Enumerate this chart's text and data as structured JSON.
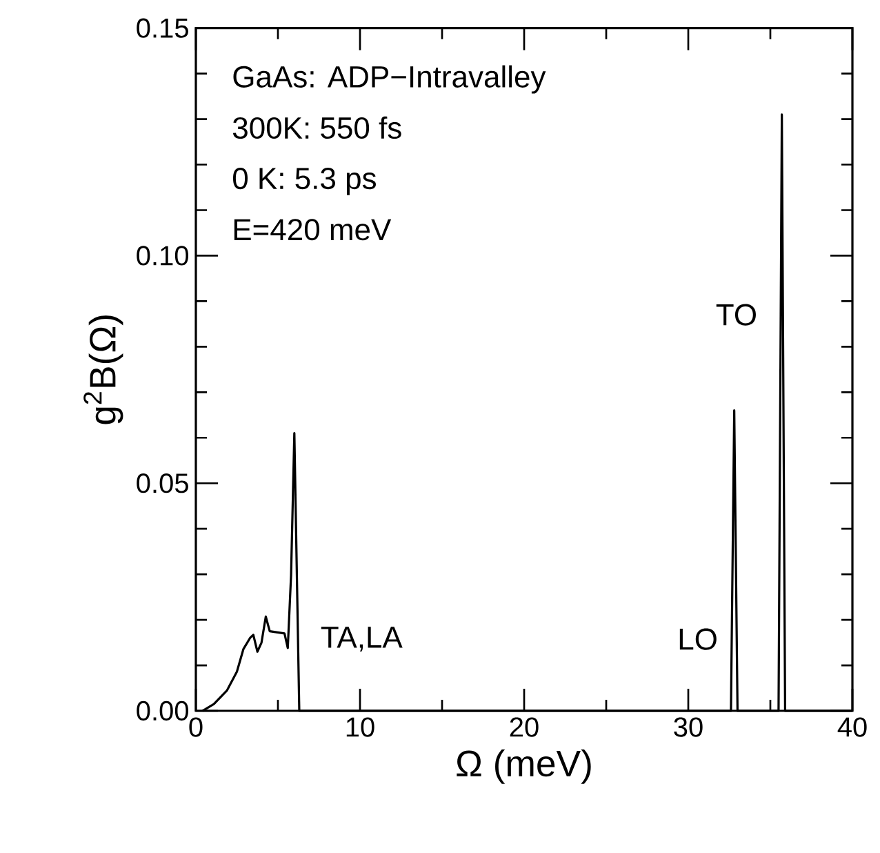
{
  "chart_data": {
    "type": "line",
    "xlabel": "Ω (meV)",
    "ylabel": "g$^{2}$B(Ω)",
    "xlim": [
      0,
      40
    ],
    "ylim": [
      0,
      0.15
    ],
    "xticks": [
      0,
      {
        "value": 5,
        "label": null
      },
      10,
      {
        "value": 15,
        "label": null
      },
      20,
      {
        "value": 25,
        "label": null
      },
      30,
      {
        "value": 35,
        "label": null
      },
      40
    ],
    "yticks": [
      {
        "value": 0,
        "label": "0.00"
      },
      {
        "value": 0.01,
        "label": null
      },
      {
        "value": 0.02,
        "label": null
      },
      {
        "value": 0.03,
        "label": null
      },
      {
        "value": 0.04,
        "label": null
      },
      {
        "value": 0.05,
        "label": "0.05"
      },
      {
        "value": 0.06,
        "label": null
      },
      {
        "value": 0.07,
        "label": null
      },
      {
        "value": 0.08,
        "label": null
      },
      {
        "value": 0.09,
        "label": null
      },
      {
        "value": 0.1,
        "label": "0.10"
      },
      {
        "value": 0.11,
        "label": null
      },
      {
        "value": 0.12,
        "label": null
      },
      {
        "value": 0.13,
        "label": null
      },
      {
        "value": 0.14,
        "label": null
      },
      {
        "value": 0.15,
        "label": "0.15"
      }
    ],
    "series": [
      {
        "color": "#000000",
        "x": [
          0.4,
          1.1,
          1.9,
          2.5,
          2.9,
          3.3,
          3.5,
          3.75,
          4.0,
          4.26,
          4.5,
          5.4,
          5.6,
          5.8,
          6.0,
          6.3,
          32.6,
          32.8,
          33.0,
          35.5,
          35.7,
          35.9,
          40
        ],
        "values": [
          0,
          0.0015,
          0.0045,
          0.0086,
          0.0136,
          0.016,
          0.0167,
          0.013,
          0.015,
          0.0207,
          0.0175,
          0.017,
          0.0138,
          0.0298,
          0.061,
          0,
          0,
          0.066,
          0,
          0,
          0.131,
          0,
          0
        ]
      }
    ],
    "marker": "none",
    "line_style": "solid",
    "grid": false,
    "annotations": [
      "GaAs: ADP−Intravalley",
      "300K: 550 fs",
      "0  K: 5.3 ps",
      "E=420 meV",
      "TA,LA",
      "LO",
      "TO"
    ]
  }
}
